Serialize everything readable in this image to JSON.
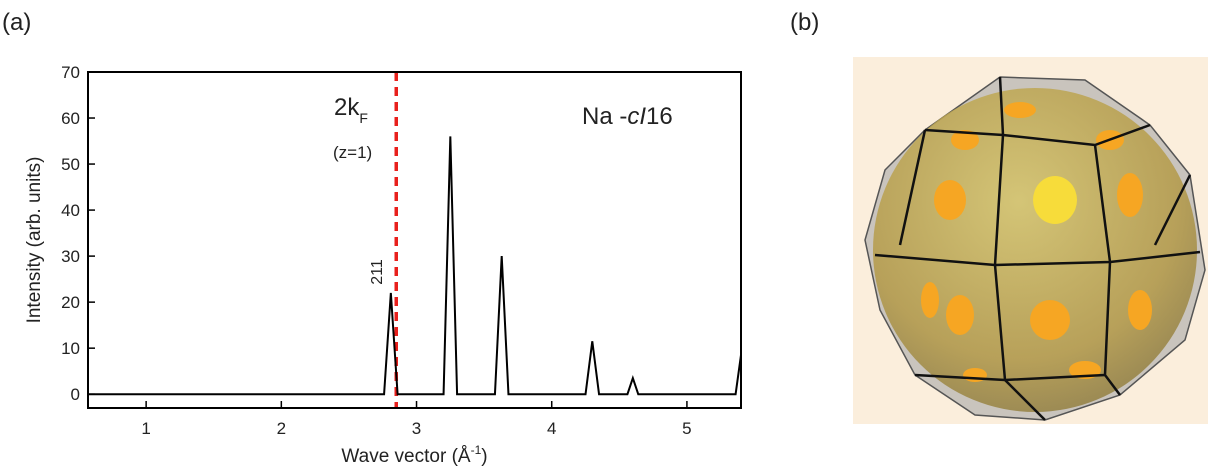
{
  "panel_labels": [
    "(a)",
    "(b)"
  ],
  "chart_data": {
    "type": "line",
    "x_label": {
      "text": "Wave vector (Å",
      "superscript": "-1",
      "suffix": ")"
    },
    "y_label": "Intensity (arb. units)",
    "xlim": [
      0.57,
      5.4
    ],
    "ylim": [
      -3,
      70
    ],
    "xticks": [
      1,
      2,
      3,
      4,
      5
    ],
    "yticks": [
      0,
      10,
      20,
      30,
      40,
      50,
      60,
      70
    ],
    "x": [
      0.57,
      2.76,
      2.81,
      2.86,
      3.2,
      3.25,
      3.3,
      3.58,
      3.63,
      3.68,
      4.25,
      4.3,
      4.35,
      4.56,
      4.6,
      4.64,
      5.36,
      5.4
    ],
    "series": [
      {
        "color": "#000000",
        "values": [
          0,
          0,
          22,
          0,
          0,
          56,
          0,
          0,
          30,
          0,
          0,
          11.5,
          0,
          0,
          3.5,
          0,
          0,
          8.5
        ]
      }
    ],
    "vline": {
      "x": 2.85,
      "color": "#e8201c"
    },
    "annotations": {
      "kf": {
        "text": "2k",
        "subscript": "F"
      },
      "z": "(z=1)",
      "phase": {
        "prefix": "Na -",
        "italic": "cI",
        "suffix": "16"
      },
      "peak": "211"
    }
  }
}
